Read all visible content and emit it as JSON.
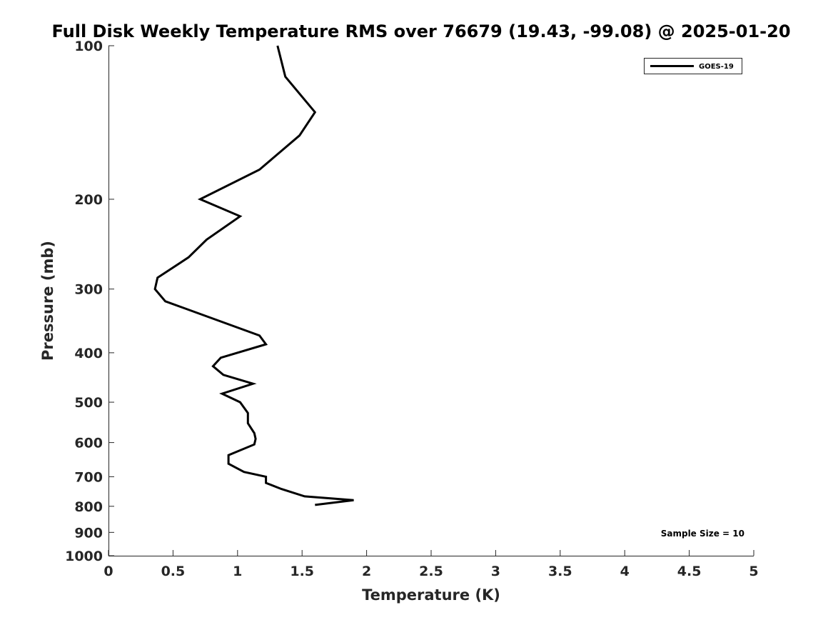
{
  "chart_data": {
    "type": "line",
    "title": "Full Disk Weekly Temperature RMS over 76679 (19.43, -99.08) @ 2025-01-20",
    "xlabel": "Temperature (K)",
    "ylabel": "Pressure (mb)",
    "xlim": [
      0,
      5
    ],
    "ylim": [
      1000,
      100
    ],
    "y_scale": "log",
    "y_reversed": true,
    "x_ticks": [
      "0",
      "0.5",
      "1",
      "1.5",
      "2",
      "2.5",
      "3",
      "3.5",
      "4",
      "4.5",
      "5"
    ],
    "y_ticks": [
      "100",
      "200",
      "300",
      "400",
      "500",
      "600",
      "700",
      "800",
      "900",
      "1000"
    ],
    "grid": false,
    "legend_position": "top-right",
    "annotation": "Sample Size = 10",
    "series": [
      {
        "name": "GOES-19",
        "color": "#000000",
        "points": [
          {
            "x": 1.31,
            "p": 100
          },
          {
            "x": 1.37,
            "p": 115
          },
          {
            "x": 1.6,
            "p": 135
          },
          {
            "x": 1.48,
            "p": 150
          },
          {
            "x": 1.17,
            "p": 175
          },
          {
            "x": 0.71,
            "p": 200
          },
          {
            "x": 1.02,
            "p": 216
          },
          {
            "x": 0.76,
            "p": 240
          },
          {
            "x": 0.62,
            "p": 260
          },
          {
            "x": 0.38,
            "p": 285
          },
          {
            "x": 0.36,
            "p": 300
          },
          {
            "x": 0.44,
            "p": 317
          },
          {
            "x": 1.17,
            "p": 370
          },
          {
            "x": 1.22,
            "p": 385
          },
          {
            "x": 0.87,
            "p": 409
          },
          {
            "x": 0.81,
            "p": 425
          },
          {
            "x": 0.89,
            "p": 442
          },
          {
            "x": 1.12,
            "p": 460
          },
          {
            "x": 0.88,
            "p": 481
          },
          {
            "x": 1.02,
            "p": 500
          },
          {
            "x": 1.08,
            "p": 525
          },
          {
            "x": 1.08,
            "p": 550
          },
          {
            "x": 1.13,
            "p": 575
          },
          {
            "x": 1.14,
            "p": 590
          },
          {
            "x": 1.13,
            "p": 605
          },
          {
            "x": 0.93,
            "p": 635
          },
          {
            "x": 0.93,
            "p": 660
          },
          {
            "x": 1.05,
            "p": 685
          },
          {
            "x": 1.22,
            "p": 700
          },
          {
            "x": 1.22,
            "p": 720
          },
          {
            "x": 1.34,
            "p": 740
          },
          {
            "x": 1.52,
            "p": 765
          },
          {
            "x": 1.9,
            "p": 778
          },
          {
            "x": 1.6,
            "p": 795
          }
        ]
      }
    ]
  }
}
